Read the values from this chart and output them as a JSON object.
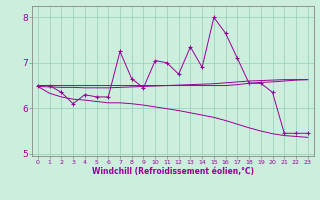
{
  "x_data": [
    0,
    1,
    2,
    3,
    4,
    5,
    6,
    7,
    8,
    9,
    10,
    11,
    12,
    13,
    14,
    15,
    16,
    17,
    18,
    19,
    20,
    21,
    22,
    23
  ],
  "y_main": [
    6.5,
    6.5,
    6.35,
    6.1,
    6.3,
    6.25,
    6.25,
    7.25,
    6.65,
    6.45,
    7.05,
    7.0,
    6.75,
    7.35,
    6.9,
    8.0,
    7.65,
    7.1,
    6.55,
    6.55,
    6.35,
    5.45,
    5.45,
    5.45
  ],
  "y_trend1": [
    6.5,
    6.5,
    6.5,
    6.5,
    6.5,
    6.5,
    6.5,
    6.5,
    6.5,
    6.5,
    6.5,
    6.5,
    6.5,
    6.5,
    6.5,
    6.5,
    6.5,
    6.52,
    6.55,
    6.57,
    6.58,
    6.6,
    6.62,
    6.63
  ],
  "y_trend2": [
    6.48,
    6.47,
    6.46,
    6.46,
    6.45,
    6.45,
    6.45,
    6.46,
    6.47,
    6.48,
    6.49,
    6.5,
    6.51,
    6.52,
    6.53,
    6.54,
    6.56,
    6.58,
    6.6,
    6.61,
    6.62,
    6.63,
    6.63,
    6.63
  ],
  "y_trend3": [
    6.48,
    6.33,
    6.25,
    6.2,
    6.18,
    6.15,
    6.12,
    6.12,
    6.1,
    6.07,
    6.03,
    5.99,
    5.95,
    5.9,
    5.85,
    5.8,
    5.73,
    5.65,
    5.57,
    5.5,
    5.44,
    5.4,
    5.38,
    5.36
  ],
  "line_color": "#990099",
  "bg_color": "#cceedd",
  "ylim": [
    4.95,
    8.25
  ],
  "xlim": [
    -0.5,
    23.5
  ],
  "xlabel": "Windchill (Refroidissement éolien,°C)",
  "yticks": [
    5,
    6,
    7,
    8
  ],
  "xticks": [
    0,
    1,
    2,
    3,
    4,
    5,
    6,
    7,
    8,
    9,
    10,
    11,
    12,
    13,
    14,
    15,
    16,
    17,
    18,
    19,
    20,
    21,
    22,
    23
  ],
  "xtick_labels": [
    "0",
    "1",
    "2",
    "3",
    "4",
    "5",
    "6",
    "7",
    "8",
    "9",
    "10",
    "11",
    "12",
    "13",
    "14",
    "15",
    "16",
    "17",
    "18",
    "19",
    "20",
    "21",
    "22",
    "23"
  ]
}
